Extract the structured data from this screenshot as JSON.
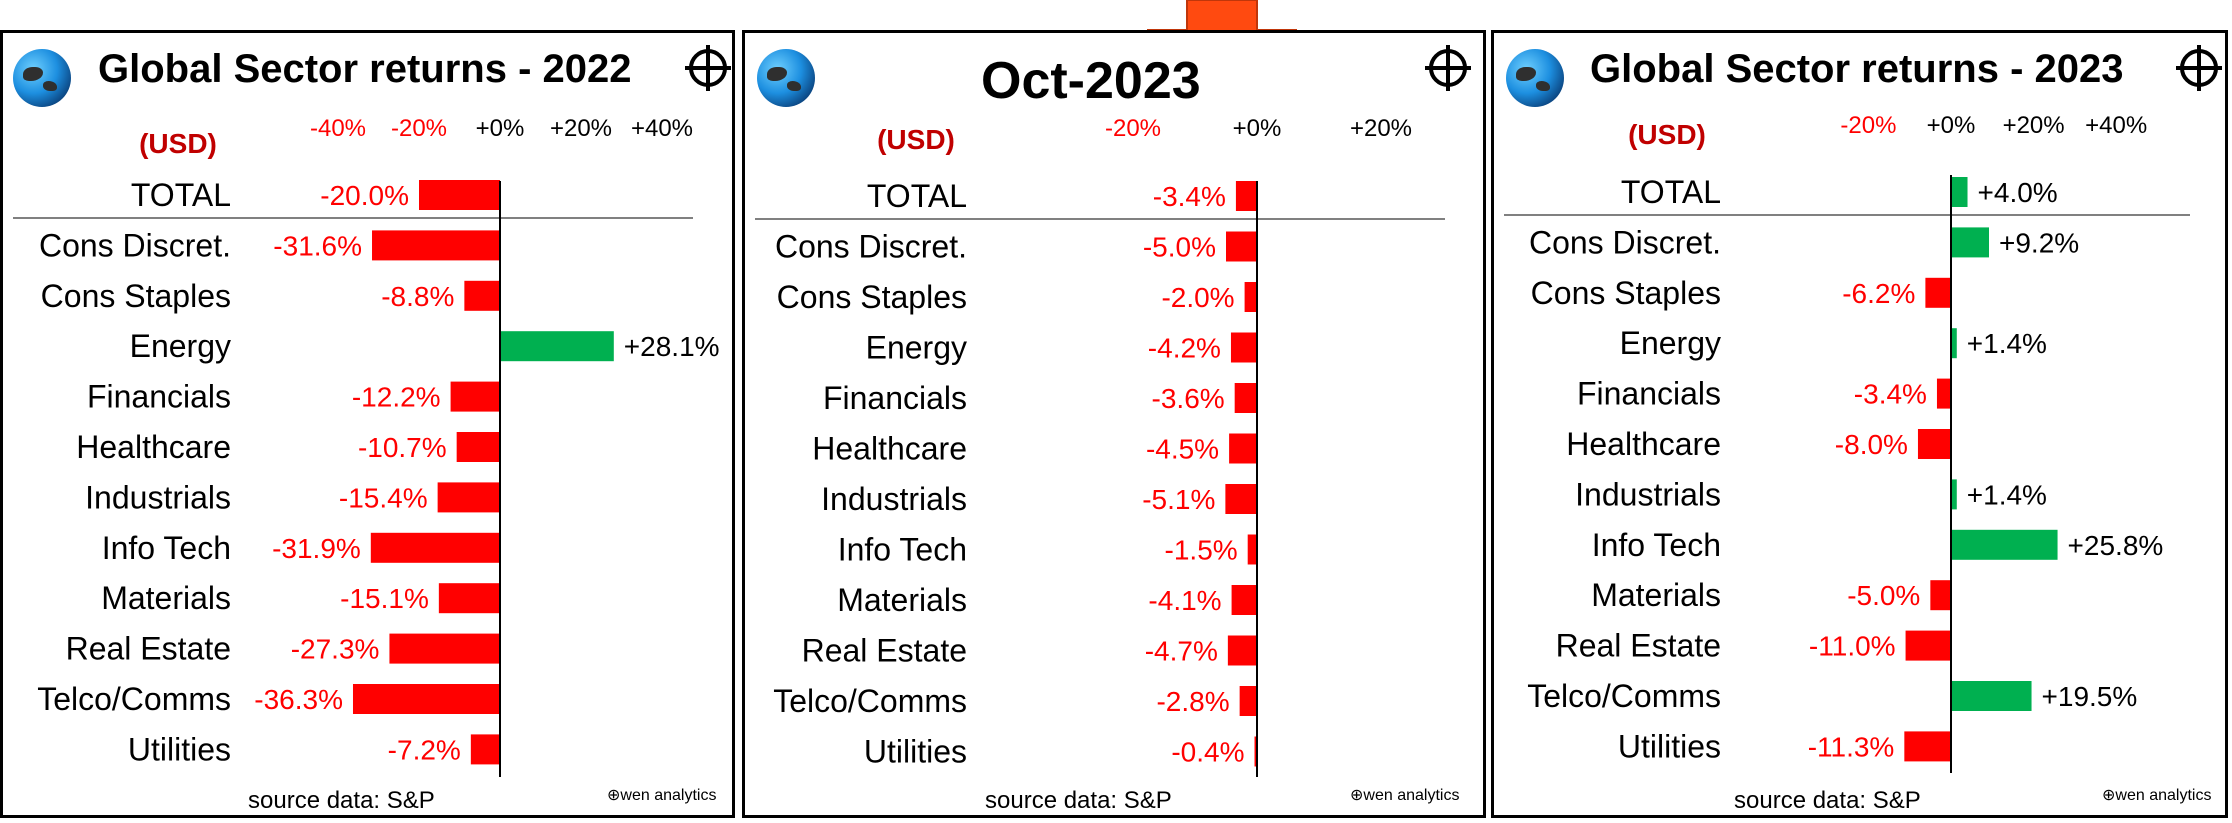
{
  "arrow_color": "#ff4a10",
  "colors": {
    "negative": "#ff0000",
    "positive": "#00b050",
    "label_positive": "#000000",
    "axis_tick": "#ff0000",
    "usd": "#c00000"
  },
  "icons": {
    "globe": "globe-icon",
    "crosshair": "crosshair-icon"
  },
  "panels": [
    {
      "title": "Global Sector returns - 2022",
      "usd_label": "(USD)",
      "source": "source data: S&P",
      "brand": "wen analytics",
      "tick_labels": [
        "-40%",
        "-20%",
        "+0%",
        "+20%",
        "+40%"
      ]
    },
    {
      "title": "Oct-2023",
      "usd_label": "(USD)",
      "source": "source data: S&P",
      "brand": "wen analytics",
      "tick_labels": [
        "-20%",
        "+0%",
        "+20%"
      ]
    },
    {
      "title": "Global Sector returns - 2023",
      "usd_label": "(USD)",
      "source": "source data: S&P",
      "brand": "wen analytics",
      "tick_labels": [
        "-20%",
        "+0%",
        "+20%",
        "+40%"
      ]
    }
  ],
  "chart_data": [
    {
      "type": "bar",
      "orientation": "horizontal",
      "title": "Global Sector returns - 2022",
      "categories": [
        "TOTAL",
        "Cons Discret.",
        "Cons Staples",
        "Energy",
        "Financials",
        "Healthcare",
        "Industrials",
        "Info Tech",
        "Materials",
        "Real Estate",
        "Telco/Comms",
        "Utilities"
      ],
      "values": [
        -20.0,
        -31.6,
        -8.8,
        28.1,
        -12.2,
        -10.7,
        -15.4,
        -31.9,
        -15.1,
        -27.3,
        -36.3,
        -7.2
      ],
      "labels": [
        "-20.0%",
        "-31.6%",
        "-8.8%",
        "+28.1%",
        "-12.2%",
        "-10.7%",
        "-15.4%",
        "-31.9%",
        "-15.1%",
        "-27.3%",
        "-36.3%",
        "-7.2%"
      ],
      "ticks": [
        -40,
        -20,
        0,
        20,
        40
      ],
      "xlim": [
        -40,
        40
      ],
      "unit": "%"
    },
    {
      "type": "bar",
      "orientation": "horizontal",
      "title": "Oct-2023",
      "categories": [
        "TOTAL",
        "Cons Discret.",
        "Cons Staples",
        "Energy",
        "Financials",
        "Healthcare",
        "Industrials",
        "Info Tech",
        "Materials",
        "Real Estate",
        "Telco/Comms",
        "Utilities"
      ],
      "values": [
        -3.4,
        -5.0,
        -2.0,
        -4.2,
        -3.6,
        -4.5,
        -5.1,
        -1.5,
        -4.1,
        -4.7,
        -2.8,
        -0.4
      ],
      "labels": [
        "-3.4%",
        "-5.0%",
        "-2.0%",
        "-4.2%",
        "-3.6%",
        "-4.5%",
        "-5.1%",
        "-1.5%",
        "-4.1%",
        "-4.7%",
        "-2.8%",
        "-0.4%"
      ],
      "ticks": [
        -20,
        0,
        20
      ],
      "xlim": [
        -20,
        20
      ],
      "unit": "%"
    },
    {
      "type": "bar",
      "orientation": "horizontal",
      "title": "Global Sector returns - 2023",
      "categories": [
        "TOTAL",
        "Cons Discret.",
        "Cons Staples",
        "Energy",
        "Financials",
        "Healthcare",
        "Industrials",
        "Info Tech",
        "Materials",
        "Real Estate",
        "Telco/Comms",
        "Utilities"
      ],
      "values": [
        4.0,
        9.2,
        -6.2,
        1.4,
        -3.4,
        -8.0,
        1.4,
        25.8,
        -5.0,
        -11.0,
        19.5,
        -11.3
      ],
      "labels": [
        "+4.0%",
        "+9.2%",
        "-6.2%",
        "+1.4%",
        "-3.4%",
        "-8.0%",
        "+1.4%",
        "+25.8%",
        "-5.0%",
        "-11.0%",
        "+19.5%",
        "-11.3%"
      ],
      "ticks": [
        -20,
        0,
        20,
        40
      ],
      "xlim": [
        -20,
        40
      ],
      "unit": "%"
    }
  ]
}
